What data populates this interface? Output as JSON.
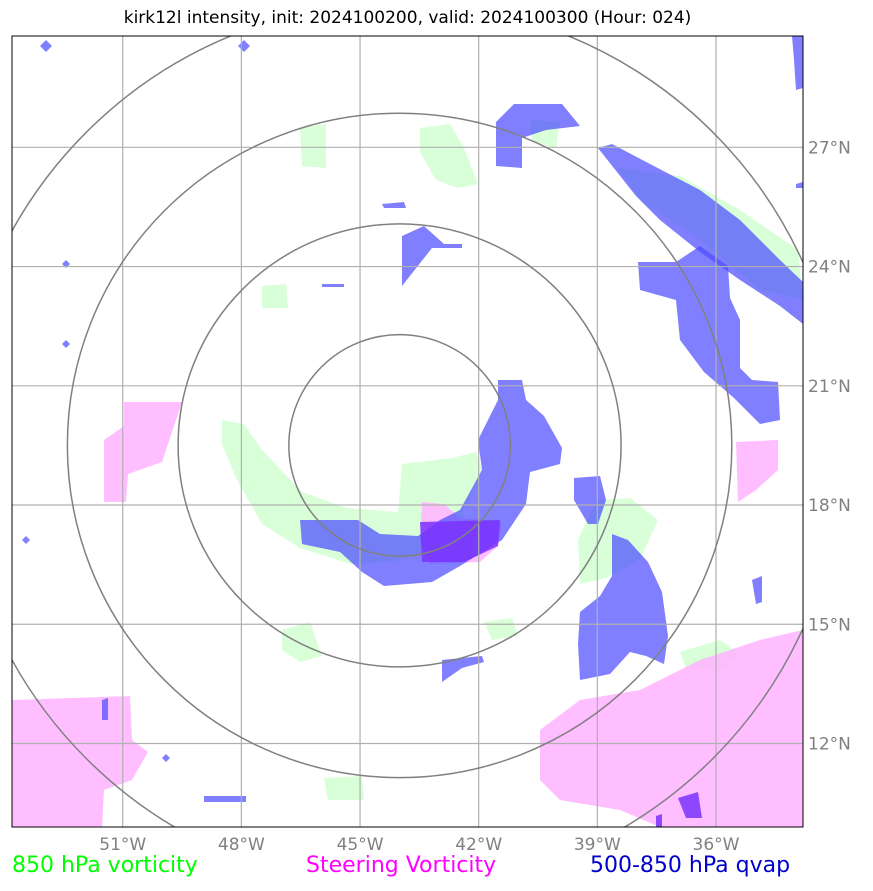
{
  "title": "kirk12l intensity, init: 2024100200, valid: 2024100300 (Hour: 024)",
  "colors": {
    "vorticity_850": "#00ff00",
    "steering_vorticity": "#ff00ff",
    "qvap": "#0000cc",
    "grid": "#b0b0b0",
    "rings": "#808080",
    "labels": "#808080"
  },
  "axes": {
    "lon_ticks": [
      "51°W",
      "48°W",
      "45°W",
      "42°W",
      "39°W",
      "36°W"
    ],
    "lat_ticks": [
      "27°N",
      "24°N",
      "21°N",
      "18°N",
      "15°N",
      "12°N"
    ],
    "lon_range": [
      -53.8,
      -33.8
    ],
    "lat_range": [
      9.9,
      29.8
    ]
  },
  "legend": [
    {
      "label": "850 hPa vorticity",
      "color": "#00ff00"
    },
    {
      "label": "Steering Vorticity",
      "color": "#ff00ff"
    },
    {
      "label": "500-850 hPa qvap",
      "color": "#0000cc"
    }
  ],
  "storm_center": {
    "lon": -44.0,
    "lat": 19.5
  }
}
